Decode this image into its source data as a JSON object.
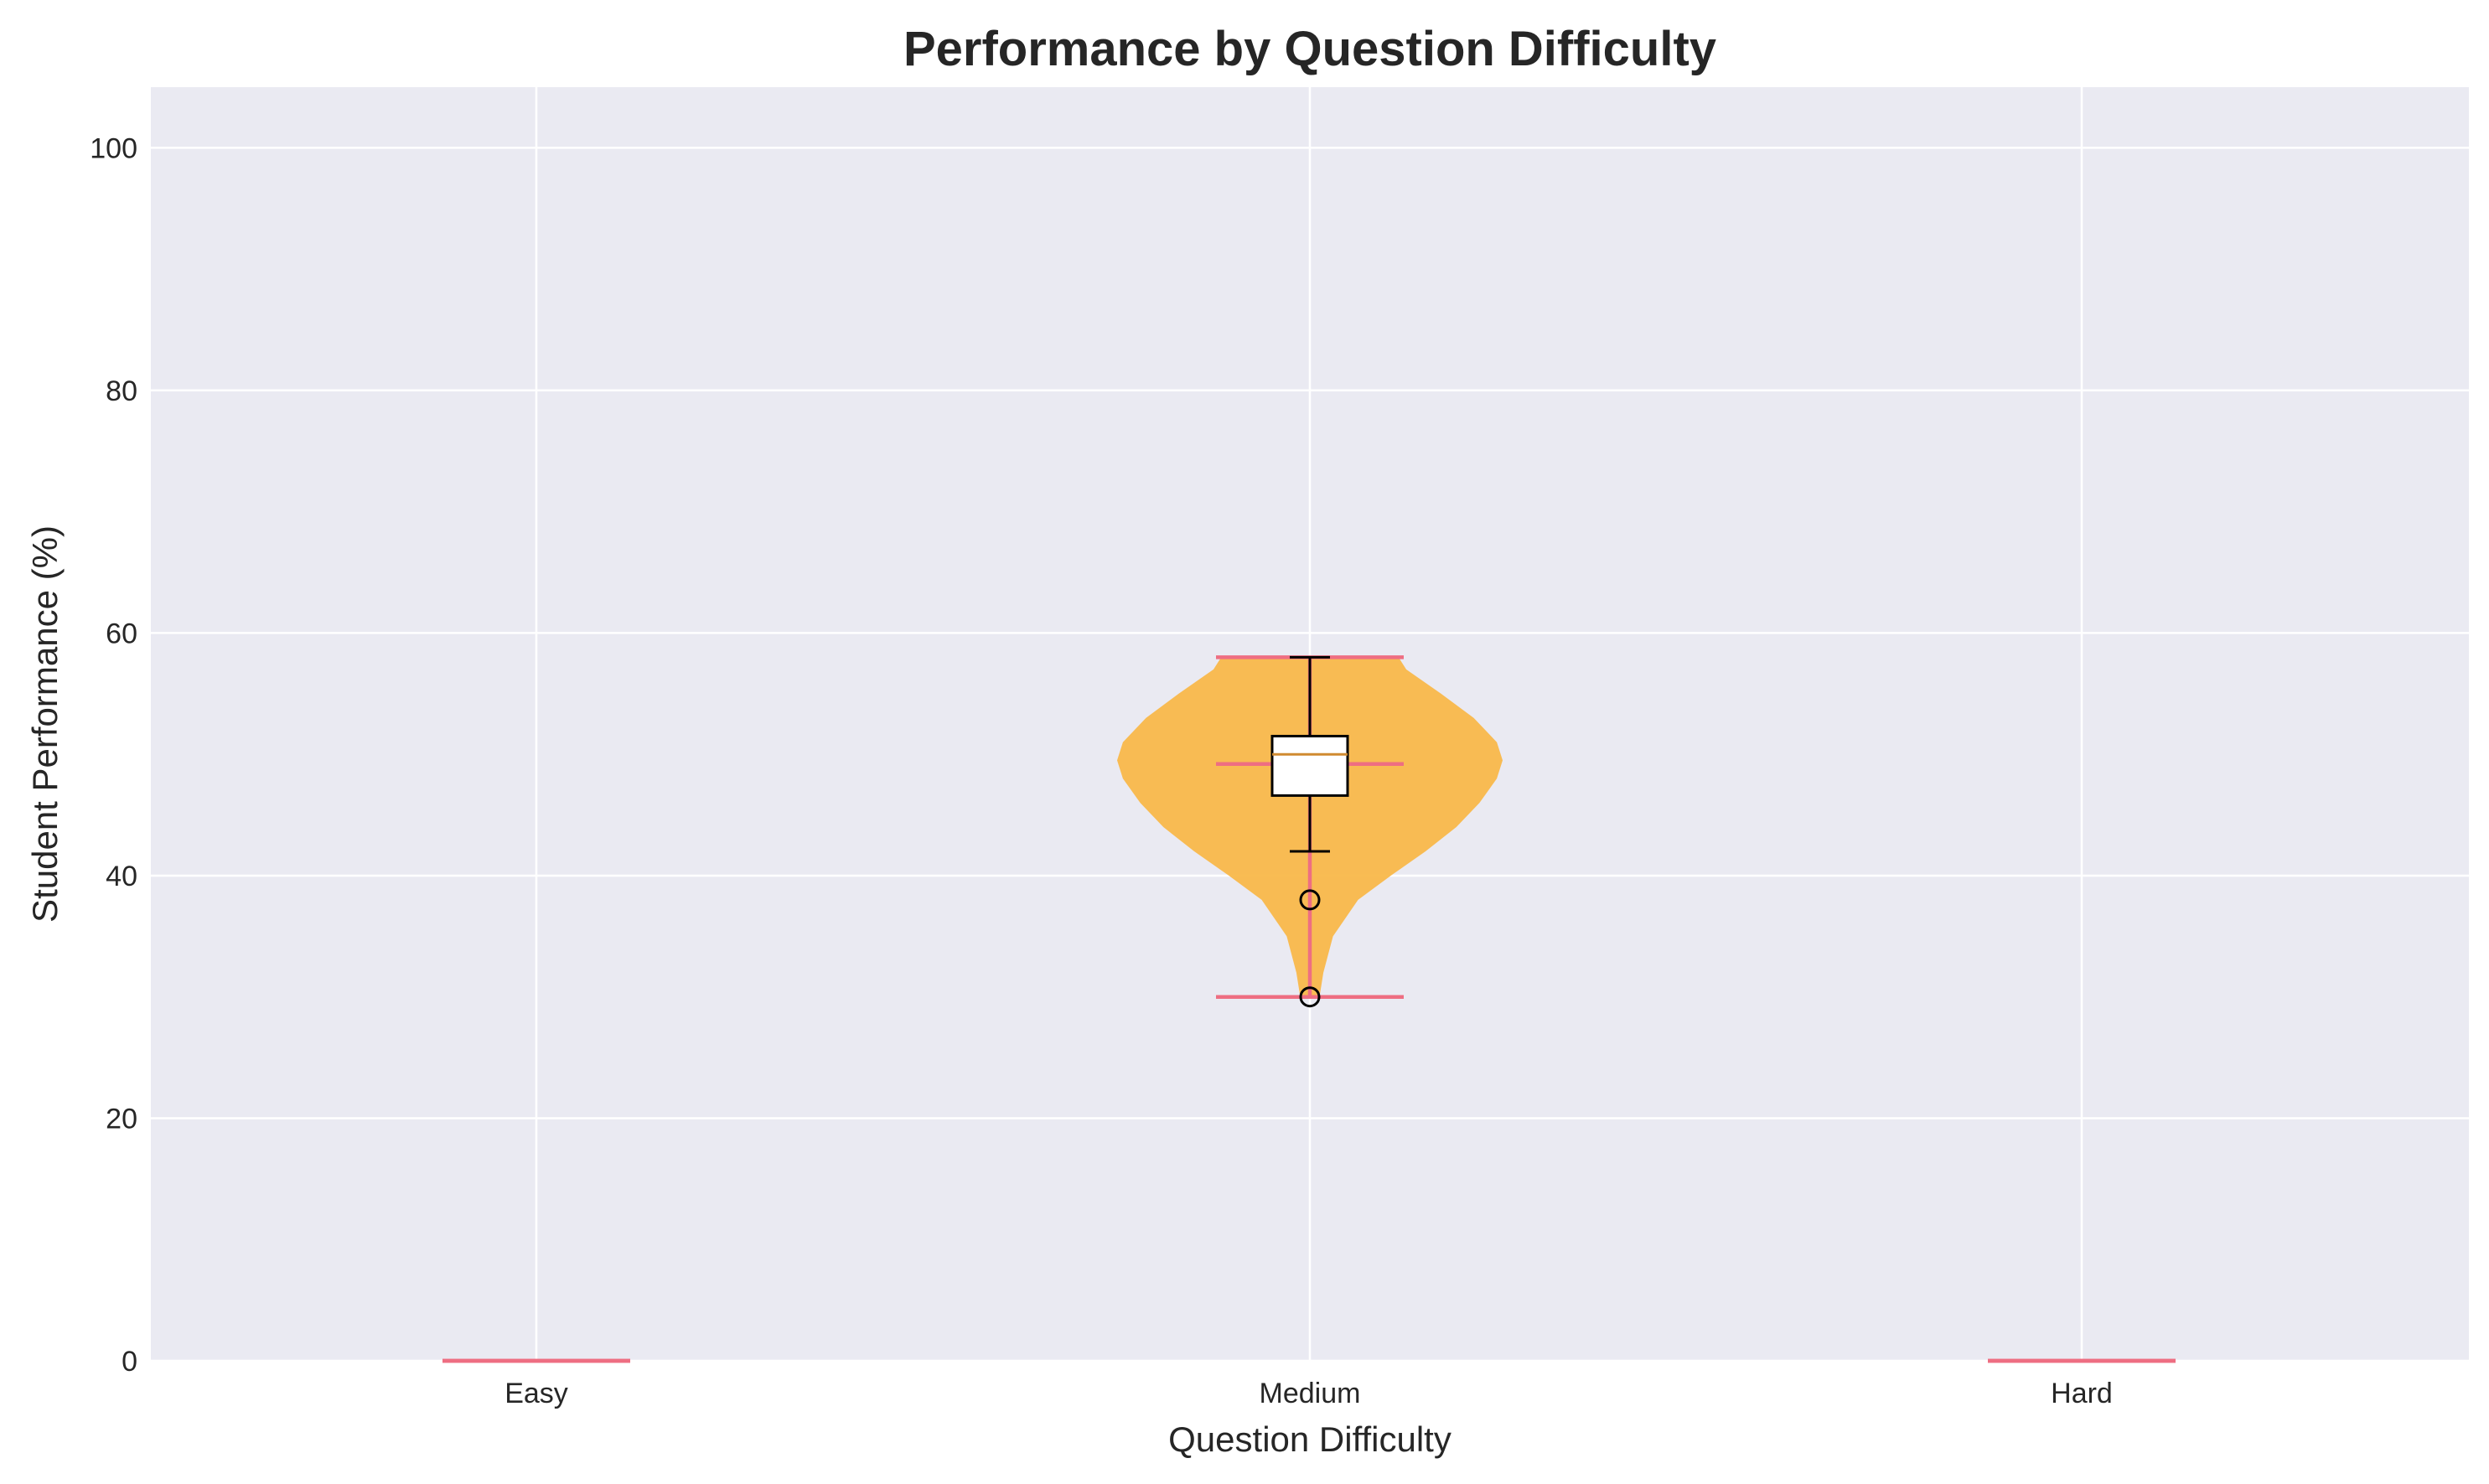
{
  "chart_data": {
    "type": "violin",
    "title": "Performance by Question Difficulty",
    "xlabel": "Question Difficulty",
    "ylabel": "Student Performance (%)",
    "categories": [
      "Easy",
      "Medium",
      "Hard"
    ],
    "ylim": [
      0,
      105
    ],
    "yticks": [
      0,
      20,
      40,
      60,
      80,
      100
    ],
    "grid": true,
    "colors": {
      "background": "#eaeaf2",
      "grid": "#ffffff",
      "violin_fill": "#f9b84a",
      "violin_lines": "#ee6e82",
      "box_fill": "#ffffff",
      "box_edge": "#000000",
      "box_median": "#d08a30"
    },
    "series": [
      {
        "category": "Easy",
        "min": 0,
        "max": 0,
        "mean": 0,
        "median": 0,
        "q1": 0,
        "q3": 0,
        "whisker_low": 0,
        "whisker_high": 0,
        "outliers": [],
        "density": []
      },
      {
        "category": "Medium",
        "min": 30,
        "max": 58,
        "mean": 49.2,
        "median": 50,
        "q1": 46.6,
        "q3": 51.5,
        "whisker_low": 42,
        "whisker_high": 58,
        "outliers": [
          38,
          30
        ],
        "density": [
          [
            30,
            0.05
          ],
          [
            32,
            0.07
          ],
          [
            35,
            0.12
          ],
          [
            38,
            0.25
          ],
          [
            40,
            0.42
          ],
          [
            42,
            0.6
          ],
          [
            44,
            0.76
          ],
          [
            46,
            0.88
          ],
          [
            48,
            0.97
          ],
          [
            49.5,
            1.0
          ],
          [
            51,
            0.97
          ],
          [
            53,
            0.85
          ],
          [
            55,
            0.68
          ],
          [
            57,
            0.5
          ],
          [
            58,
            0.46
          ]
        ]
      },
      {
        "category": "Hard",
        "min": 0,
        "max": 0,
        "mean": 0,
        "median": 0,
        "q1": 0,
        "q3": 0,
        "whisker_low": 0,
        "whisker_high": 0,
        "outliers": [],
        "density": []
      }
    ]
  }
}
